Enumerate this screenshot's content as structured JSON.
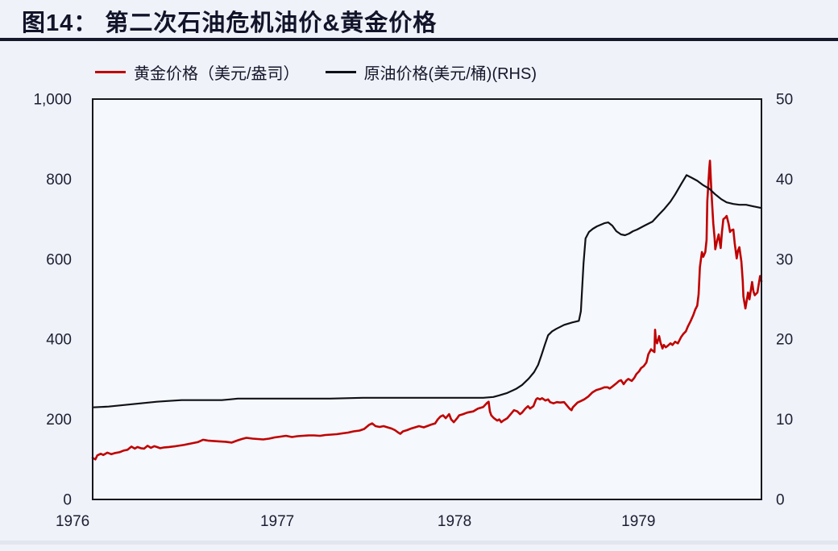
{
  "page": {
    "background": "#eff2f8",
    "accent_red": "#c00000",
    "line_black": "#101018"
  },
  "header": {
    "title": "图14： 第二次石油危机油价&黄金价格"
  },
  "legend": {
    "items": [
      {
        "label": "黄金价格（美元/盎司）",
        "color": "#c00000"
      },
      {
        "label": "原油价格(美元/桶)(RHS)",
        "color": "#101018"
      }
    ]
  },
  "chart_data": {
    "type": "line",
    "title": "第二次石油危机油价&黄金价格",
    "grid": false,
    "legend_position": "top",
    "x_note": "x values are fractions of plot width; span ≈ Jan 1976 to mid 1980",
    "x_ticks": [
      {
        "label": "1976",
        "f": -0.03
      },
      {
        "label": "1977",
        "f": 0.276
      },
      {
        "label": "1978",
        "f": 0.541
      },
      {
        "label": "1979",
        "f": 0.816
      }
    ],
    "y_left": {
      "title": "黄金价格（美元/盎司）",
      "min": 0,
      "max": 1000,
      "ticks": [
        {
          "v": 0,
          "label": "0"
        },
        {
          "v": 200,
          "label": "200"
        },
        {
          "v": 400,
          "label": "400"
        },
        {
          "v": 600,
          "label": "600"
        },
        {
          "v": 800,
          "label": "800"
        },
        {
          "v": 1000,
          "label": "1,000"
        }
      ]
    },
    "y_right": {
      "title": "原油价格(美元/桶)",
      "min": 0,
      "max": 50,
      "ticks": [
        {
          "v": 0,
          "label": "0"
        },
        {
          "v": 10,
          "label": "10"
        },
        {
          "v": 20,
          "label": "20"
        },
        {
          "v": 30,
          "label": "30"
        },
        {
          "v": 40,
          "label": "40"
        },
        {
          "v": 50,
          "label": "50"
        }
      ]
    },
    "series": [
      {
        "name": "黄金价格（美元/盎司）",
        "axis": "left",
        "color": "#c00000",
        "width": 2.6,
        "points": [
          [
            0.0,
            104
          ],
          [
            0.004,
            100
          ],
          [
            0.007,
            110
          ],
          [
            0.012,
            114
          ],
          [
            0.016,
            111
          ],
          [
            0.022,
            117
          ],
          [
            0.028,
            113
          ],
          [
            0.034,
            116
          ],
          [
            0.04,
            118
          ],
          [
            0.046,
            122
          ],
          [
            0.052,
            124
          ],
          [
            0.058,
            132
          ],
          [
            0.063,
            127
          ],
          [
            0.067,
            131
          ],
          [
            0.072,
            128
          ],
          [
            0.077,
            127
          ],
          [
            0.082,
            134
          ],
          [
            0.087,
            129
          ],
          [
            0.092,
            133
          ],
          [
            0.096,
            131
          ],
          [
            0.101,
            128
          ],
          [
            0.107,
            130
          ],
          [
            0.114,
            131
          ],
          [
            0.124,
            133
          ],
          [
            0.136,
            136
          ],
          [
            0.148,
            140
          ],
          [
            0.157,
            143
          ],
          [
            0.165,
            149
          ],
          [
            0.172,
            147
          ],
          [
            0.18,
            146
          ],
          [
            0.189,
            145
          ],
          [
            0.199,
            144
          ],
          [
            0.208,
            142
          ],
          [
            0.216,
            147
          ],
          [
            0.223,
            151
          ],
          [
            0.23,
            154
          ],
          [
            0.239,
            152
          ],
          [
            0.247,
            151
          ],
          [
            0.255,
            150
          ],
          [
            0.264,
            152
          ],
          [
            0.272,
            155
          ],
          [
            0.281,
            157
          ],
          [
            0.289,
            159
          ],
          [
            0.298,
            156
          ],
          [
            0.306,
            158
          ],
          [
            0.314,
            159
          ],
          [
            0.323,
            160
          ],
          [
            0.331,
            160
          ],
          [
            0.34,
            159
          ],
          [
            0.348,
            161
          ],
          [
            0.357,
            162
          ],
          [
            0.365,
            163
          ],
          [
            0.373,
            165
          ],
          [
            0.382,
            167
          ],
          [
            0.39,
            170
          ],
          [
            0.399,
            172
          ],
          [
            0.406,
            176
          ],
          [
            0.413,
            186
          ],
          [
            0.418,
            190
          ],
          [
            0.423,
            183
          ],
          [
            0.429,
            181
          ],
          [
            0.435,
            183
          ],
          [
            0.441,
            180
          ],
          [
            0.447,
            177
          ],
          [
            0.452,
            173
          ],
          [
            0.457,
            167
          ],
          [
            0.46,
            164
          ],
          [
            0.464,
            170
          ],
          [
            0.47,
            173
          ],
          [
            0.476,
            177
          ],
          [
            0.482,
            180
          ],
          [
            0.488,
            183
          ],
          [
            0.495,
            180
          ],
          [
            0.5,
            183
          ],
          [
            0.506,
            187
          ],
          [
            0.512,
            190
          ],
          [
            0.516,
            200
          ],
          [
            0.52,
            207
          ],
          [
            0.524,
            210
          ],
          [
            0.528,
            203
          ],
          [
            0.533,
            213
          ],
          [
            0.536,
            200
          ],
          [
            0.54,
            193
          ],
          [
            0.545,
            203
          ],
          [
            0.548,
            210
          ],
          [
            0.554,
            213
          ],
          [
            0.56,
            217
          ],
          [
            0.569,
            220
          ],
          [
            0.576,
            227
          ],
          [
            0.584,
            231
          ],
          [
            0.589,
            240
          ],
          [
            0.592,
            244
          ],
          [
            0.594,
            220
          ],
          [
            0.596,
            210
          ],
          [
            0.6,
            203
          ],
          [
            0.605,
            197
          ],
          [
            0.608,
            200
          ],
          [
            0.611,
            193
          ],
          [
            0.614,
            197
          ],
          [
            0.62,
            203
          ],
          [
            0.627,
            217
          ],
          [
            0.63,
            223
          ],
          [
            0.635,
            220
          ],
          [
            0.639,
            213
          ],
          [
            0.642,
            217
          ],
          [
            0.647,
            227
          ],
          [
            0.651,
            233
          ],
          [
            0.654,
            227
          ],
          [
            0.659,
            233
          ],
          [
            0.663,
            250
          ],
          [
            0.665,
            253
          ],
          [
            0.669,
            250
          ],
          [
            0.672,
            253
          ],
          [
            0.677,
            247
          ],
          [
            0.681,
            250
          ],
          [
            0.684,
            243
          ],
          [
            0.689,
            240
          ],
          [
            0.694,
            243
          ],
          [
            0.699,
            242
          ],
          [
            0.705,
            243
          ],
          [
            0.708,
            237
          ],
          [
            0.713,
            227
          ],
          [
            0.716,
            223
          ],
          [
            0.718,
            230
          ],
          [
            0.722,
            237
          ],
          [
            0.725,
            242
          ],
          [
            0.729,
            245
          ],
          [
            0.735,
            250
          ],
          [
            0.741,
            257
          ],
          [
            0.747,
            267
          ],
          [
            0.753,
            273
          ],
          [
            0.759,
            276
          ],
          [
            0.765,
            280
          ],
          [
            0.77,
            280
          ],
          [
            0.773,
            277
          ],
          [
            0.778,
            283
          ],
          [
            0.783,
            290
          ],
          [
            0.787,
            296
          ],
          [
            0.79,
            298
          ],
          [
            0.794,
            288
          ],
          [
            0.798,
            297
          ],
          [
            0.801,
            301
          ],
          [
            0.806,
            296
          ],
          [
            0.81,
            304
          ],
          [
            0.813,
            313
          ],
          [
            0.817,
            320
          ],
          [
            0.82,
            328
          ],
          [
            0.824,
            333
          ],
          [
            0.828,
            342
          ],
          [
            0.831,
            363
          ],
          [
            0.835,
            375
          ],
          [
            0.837,
            372
          ],
          [
            0.84,
            368
          ],
          [
            0.841,
            424
          ],
          [
            0.842,
            400
          ],
          [
            0.844,
            390
          ],
          [
            0.847,
            408
          ],
          [
            0.849,
            392
          ],
          [
            0.852,
            377
          ],
          [
            0.854,
            386
          ],
          [
            0.857,
            380
          ],
          [
            0.86,
            384
          ],
          [
            0.864,
            390
          ],
          [
            0.867,
            386
          ],
          [
            0.871,
            394
          ],
          [
            0.875,
            390
          ],
          [
            0.88,
            406
          ],
          [
            0.883,
            413
          ],
          [
            0.887,
            420
          ],
          [
            0.89,
            432
          ],
          [
            0.894,
            445
          ],
          [
            0.898,
            460
          ],
          [
            0.901,
            474
          ],
          [
            0.904,
            484
          ],
          [
            0.906,
            512
          ],
          [
            0.908,
            580
          ],
          [
            0.911,
            618
          ],
          [
            0.913,
            606
          ],
          [
            0.916,
            618
          ],
          [
            0.918,
            648
          ],
          [
            0.919,
            745
          ],
          [
            0.922,
            828
          ],
          [
            0.923,
            846
          ],
          [
            0.925,
            772
          ],
          [
            0.928,
            690
          ],
          [
            0.93,
            652
          ],
          [
            0.931,
            625
          ],
          [
            0.934,
            648
          ],
          [
            0.936,
            662
          ],
          [
            0.939,
            628
          ],
          [
            0.941,
            668
          ],
          [
            0.943,
            700
          ],
          [
            0.946,
            704
          ],
          [
            0.948,
            708
          ],
          [
            0.951,
            688
          ],
          [
            0.953,
            668
          ],
          [
            0.955,
            672
          ],
          [
            0.958,
            674
          ],
          [
            0.96,
            640
          ],
          [
            0.963,
            602
          ],
          [
            0.965,
            622
          ],
          [
            0.967,
            630
          ],
          [
            0.97,
            594
          ],
          [
            0.972,
            545
          ],
          [
            0.973,
            507
          ],
          [
            0.976,
            477
          ],
          [
            0.98,
            517
          ],
          [
            0.982,
            500
          ],
          [
            0.986,
            543
          ],
          [
            0.988,
            520
          ],
          [
            0.99,
            510
          ],
          [
            0.994,
            517
          ],
          [
            0.998,
            558
          ],
          [
            1.0,
            545
          ]
        ]
      },
      {
        "name": "原油价格(美元/桶)(RHS)",
        "axis": "right",
        "color": "#101018",
        "width": 2.2,
        "points": [
          [
            0.0,
            11.5
          ],
          [
            0.024,
            11.6
          ],
          [
            0.048,
            11.8
          ],
          [
            0.072,
            12.0
          ],
          [
            0.096,
            12.2
          ],
          [
            0.114,
            12.3
          ],
          [
            0.133,
            12.4
          ],
          [
            0.163,
            12.4
          ],
          [
            0.193,
            12.4
          ],
          [
            0.205,
            12.5
          ],
          [
            0.217,
            12.6
          ],
          [
            0.259,
            12.6
          ],
          [
            0.307,
            12.6
          ],
          [
            0.355,
            12.6
          ],
          [
            0.404,
            12.7
          ],
          [
            0.452,
            12.7
          ],
          [
            0.5,
            12.7
          ],
          [
            0.548,
            12.7
          ],
          [
            0.584,
            12.7
          ],
          [
            0.599,
            12.8
          ],
          [
            0.608,
            13.0
          ],
          [
            0.62,
            13.3
          ],
          [
            0.633,
            13.8
          ],
          [
            0.642,
            14.3
          ],
          [
            0.652,
            15.1
          ],
          [
            0.66,
            15.9
          ],
          [
            0.666,
            16.8
          ],
          [
            0.671,
            18.0
          ],
          [
            0.676,
            19.3
          ],
          [
            0.681,
            20.5
          ],
          [
            0.687,
            21.0
          ],
          [
            0.693,
            21.3
          ],
          [
            0.705,
            21.8
          ],
          [
            0.717,
            22.1
          ],
          [
            0.727,
            22.3
          ],
          [
            0.73,
            23.5
          ],
          [
            0.734,
            29.5
          ],
          [
            0.737,
            32.6
          ],
          [
            0.742,
            33.4
          ],
          [
            0.748,
            33.8
          ],
          [
            0.754,
            34.1
          ],
          [
            0.765,
            34.5
          ],
          [
            0.771,
            34.6
          ],
          [
            0.777,
            34.2
          ],
          [
            0.783,
            33.5
          ],
          [
            0.79,
            33.1
          ],
          [
            0.796,
            33.0
          ],
          [
            0.802,
            33.2
          ],
          [
            0.808,
            33.5
          ],
          [
            0.814,
            33.7
          ],
          [
            0.825,
            34.2
          ],
          [
            0.837,
            34.7
          ],
          [
            0.847,
            35.6
          ],
          [
            0.855,
            36.3
          ],
          [
            0.864,
            37.2
          ],
          [
            0.871,
            38.1
          ],
          [
            0.88,
            39.4
          ],
          [
            0.888,
            40.5
          ],
          [
            0.895,
            40.2
          ],
          [
            0.904,
            39.8
          ],
          [
            0.912,
            39.3
          ],
          [
            0.922,
            38.8
          ],
          [
            0.931,
            38.1
          ],
          [
            0.94,
            37.5
          ],
          [
            0.948,
            37.1
          ],
          [
            0.958,
            36.9
          ],
          [
            0.967,
            36.8
          ],
          [
            0.977,
            36.8
          ],
          [
            0.988,
            36.6
          ],
          [
            1.0,
            36.4
          ]
        ]
      }
    ]
  }
}
